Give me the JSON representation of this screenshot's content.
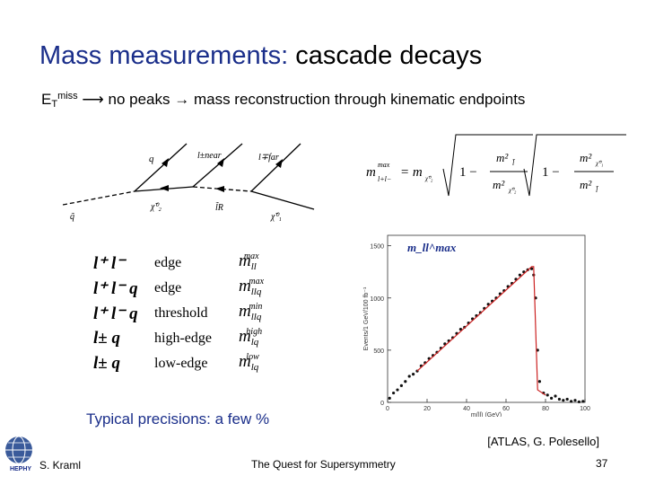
{
  "slide": {
    "title_main": "Mass measurements:",
    "title_rest": " cascade decays",
    "subtitle_et": "E",
    "subtitle_et_sub": "T",
    "subtitle_et_sup": "miss",
    "subtitle_text": " ⟶ no peaks → mass reconstruction through kinematic endpoints",
    "precisions": "Typical precisions: a few %",
    "citation": "[ATLAS, G. Polesello]",
    "logo_text": "HEPHY"
  },
  "diagram": {
    "top_labels": [
      "q",
      "l±near",
      "l∓far"
    ],
    "bottom_labels": [
      "q̃",
      "χ̃⁰₂",
      "l̃R",
      "χ̃⁰₁"
    ]
  },
  "formula": {
    "lhs": "m",
    "lhs_sub": "l+l−",
    "lhs_sup": "max",
    "eq": "= m",
    "chi2": "χ̃⁰₂",
    "one": "1 −",
    "num1": "m²",
    "num1_sub": "l̃",
    "den1": "m²",
    "den1_sub": "χ̃⁰₂",
    "num2": "m²",
    "num2_sub": "χ̃⁰₁",
    "den2": "m²",
    "den2_sub": "l̃"
  },
  "endpoints": [
    {
      "pair": "l⁺ l⁻",
      "kind": "edge",
      "mass": "m",
      "sub": "ll",
      "sup": "max"
    },
    {
      "pair": "l⁺ l⁻ q",
      "kind": "edge",
      "mass": "m",
      "sub": "llq",
      "sup": "max"
    },
    {
      "pair": "l⁺ l⁻ q",
      "kind": "threshold",
      "mass": "m",
      "sub": "llq",
      "sup": "min"
    },
    {
      "pair": "l± q",
      "kind": "high-edge",
      "mass": "m",
      "sub": "lq",
      "sup": "high"
    },
    {
      "pair": "l± q",
      "kind": "low-edge",
      "mass": "m",
      "sub": "lq",
      "sup": "low"
    }
  ],
  "chart_data": {
    "type": "scatter",
    "title": "m_ll^max",
    "xlabel": "m(ll) (GeV)",
    "ylabel": "Events/1 GeV/100 fb⁻¹",
    "xlim": [
      0,
      100
    ],
    "ylim": [
      0,
      1600
    ],
    "x_ticks": [
      0,
      20,
      40,
      60,
      80,
      100
    ],
    "y_ticks": [
      0,
      500,
      1000,
      1500
    ],
    "points": [
      [
        1,
        40
      ],
      [
        3,
        90
      ],
      [
        5,
        120
      ],
      [
        7,
        160
      ],
      [
        9,
        200
      ],
      [
        11,
        250
      ],
      [
        13,
        270
      ],
      [
        15,
        300
      ],
      [
        17,
        350
      ],
      [
        19,
        380
      ],
      [
        21,
        420
      ],
      [
        23,
        450
      ],
      [
        25,
        480
      ],
      [
        27,
        520
      ],
      [
        29,
        560
      ],
      [
        31,
        590
      ],
      [
        33,
        620
      ],
      [
        35,
        660
      ],
      [
        37,
        700
      ],
      [
        39,
        720
      ],
      [
        41,
        760
      ],
      [
        43,
        800
      ],
      [
        45,
        830
      ],
      [
        47,
        860
      ],
      [
        49,
        900
      ],
      [
        51,
        940
      ],
      [
        53,
        970
      ],
      [
        55,
        1000
      ],
      [
        57,
        1040
      ],
      [
        59,
        1070
      ],
      [
        61,
        1110
      ],
      [
        63,
        1140
      ],
      [
        65,
        1180
      ],
      [
        67,
        1220
      ],
      [
        69,
        1250
      ],
      [
        71,
        1270
      ],
      [
        73,
        1280
      ],
      [
        74,
        1220
      ],
      [
        75,
        1000
      ],
      [
        76,
        500
      ],
      [
        77,
        200
      ],
      [
        79,
        90
      ],
      [
        81,
        70
      ],
      [
        83,
        40
      ],
      [
        85,
        60
      ],
      [
        87,
        30
      ],
      [
        89,
        20
      ],
      [
        91,
        30
      ],
      [
        93,
        10
      ],
      [
        95,
        20
      ],
      [
        97,
        5
      ],
      [
        99,
        10
      ]
    ],
    "fit": [
      [
        15,
        300
      ],
      [
        73,
        1300
      ],
      [
        74,
        1300
      ],
      [
        76,
        120
      ],
      [
        80,
        70
      ]
    ],
    "fit_color": "#cc2222",
    "point_color": "#111111"
  },
  "footer": {
    "author": "S. Kraml",
    "title": "The Quest for Supersymmetry",
    "page": "37"
  }
}
